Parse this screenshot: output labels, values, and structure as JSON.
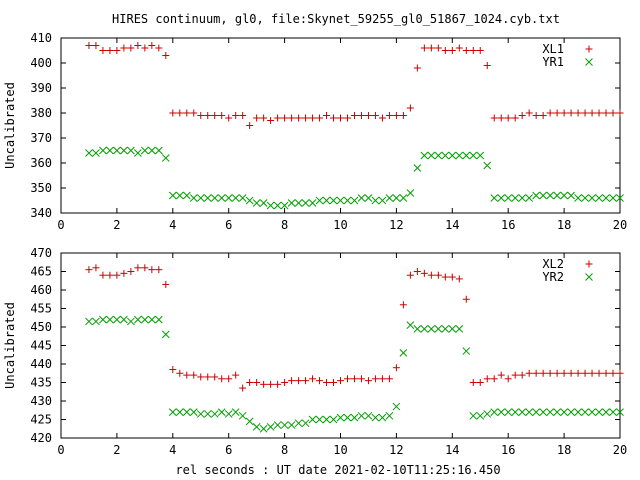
{
  "title": "HIRES continuum, gl0, file:Skynet_59255_gl0_51867_1024.cyb.txt",
  "xlabel": "rel seconds : UT date 2021-02-10T11:25:16.450",
  "colors": {
    "plus": "#cc0000",
    "cross": "#00a000",
    "frame": "#000000"
  },
  "chart_data": [
    {
      "type": "scatter",
      "ylabel": "Uncalibrated",
      "xlim": [
        0,
        20
      ],
      "ylim": [
        340,
        410
      ],
      "x_ticks": [
        0,
        2,
        4,
        6,
        8,
        10,
        12,
        14,
        16,
        18,
        20
      ],
      "y_ticks": [
        340,
        350,
        360,
        370,
        380,
        390,
        400,
        410
      ],
      "grid": false,
      "legend_position": "top-right",
      "x": [
        1.0,
        1.25,
        1.5,
        1.75,
        2.0,
        2.25,
        2.5,
        2.75,
        3.0,
        3.25,
        3.5,
        3.75,
        4.0,
        4.25,
        4.5,
        4.75,
        5.0,
        5.25,
        5.5,
        5.75,
        6.0,
        6.25,
        6.5,
        6.75,
        7.0,
        7.25,
        7.5,
        7.75,
        8.0,
        8.25,
        8.5,
        8.75,
        9.0,
        9.25,
        9.5,
        9.75,
        10.0,
        10.25,
        10.5,
        10.75,
        11.0,
        11.25,
        11.5,
        11.75,
        12.0,
        12.25,
        12.5,
        12.75,
        13.0,
        13.25,
        13.5,
        13.75,
        14.0,
        14.25,
        14.5,
        14.75,
        15.0,
        15.25,
        15.5,
        15.75,
        16.0,
        16.25,
        16.5,
        16.75,
        17.0,
        17.25,
        17.5,
        17.75,
        18.0,
        18.25,
        18.5,
        18.75,
        19.0,
        19.25,
        19.5,
        19.75,
        20.0
      ],
      "series": [
        {
          "name": "XL1",
          "marker": "plus",
          "values": [
            407,
            407,
            405,
            405,
            405,
            406,
            406,
            407,
            406,
            407,
            406,
            403,
            380,
            380,
            380,
            380,
            379,
            379,
            379,
            379,
            378,
            379,
            379,
            375,
            378,
            378,
            377,
            378,
            378,
            378,
            378,
            378,
            378,
            378,
            379,
            378,
            378,
            378,
            379,
            379,
            379,
            379,
            378,
            379,
            379,
            379,
            382,
            398,
            406,
            406,
            406,
            405,
            405,
            406,
            405,
            405,
            405,
            399,
            378,
            378,
            378,
            378,
            379,
            380,
            379,
            379,
            380,
            380,
            380,
            380,
            380,
            380,
            380,
            380,
            380,
            380,
            380
          ]
        },
        {
          "name": "YR1",
          "marker": "cross",
          "values": [
            364,
            364,
            365,
            365,
            365,
            365,
            365,
            364,
            365,
            365,
            365,
            362,
            347,
            347,
            347,
            346,
            346,
            346,
            346,
            346,
            346,
            346,
            346,
            345,
            344,
            344,
            343,
            343,
            343,
            344,
            344,
            344,
            344,
            345,
            345,
            345,
            345,
            345,
            345,
            346,
            346,
            345,
            345,
            346,
            346,
            346,
            348,
            358,
            363,
            363,
            363,
            363,
            363,
            363,
            363,
            363,
            363,
            359,
            346,
            346,
            346,
            346,
            346,
            346,
            347,
            347,
            347,
            347,
            347,
            347,
            346,
            346,
            346,
            346,
            346,
            346,
            346
          ]
        }
      ]
    },
    {
      "type": "scatter",
      "ylabel": "Uncalibrated",
      "xlim": [
        0,
        20
      ],
      "ylim": [
        420,
        470
      ],
      "x_ticks": [
        0,
        2,
        4,
        6,
        8,
        10,
        12,
        14,
        16,
        18,
        20
      ],
      "y_ticks": [
        420,
        425,
        430,
        435,
        440,
        445,
        450,
        455,
        460,
        465,
        470
      ],
      "grid": false,
      "legend_position": "top-right",
      "x": [
        1.0,
        1.25,
        1.5,
        1.75,
        2.0,
        2.25,
        2.5,
        2.75,
        3.0,
        3.25,
        3.5,
        3.75,
        4.0,
        4.25,
        4.5,
        4.75,
        5.0,
        5.25,
        5.5,
        5.75,
        6.0,
        6.25,
        6.5,
        6.75,
        7.0,
        7.25,
        7.5,
        7.75,
        8.0,
        8.25,
        8.5,
        8.75,
        9.0,
        9.25,
        9.5,
        9.75,
        10.0,
        10.25,
        10.5,
        10.75,
        11.0,
        11.25,
        11.5,
        11.75,
        12.0,
        12.25,
        12.5,
        12.75,
        13.0,
        13.25,
        13.5,
        13.75,
        14.0,
        14.25,
        14.5,
        14.75,
        15.0,
        15.25,
        15.5,
        15.75,
        16.0,
        16.25,
        16.5,
        16.75,
        17.0,
        17.25,
        17.5,
        17.75,
        18.0,
        18.25,
        18.5,
        18.75,
        19.0,
        19.25,
        19.5,
        19.75,
        20.0
      ],
      "series": [
        {
          "name": "XL2",
          "marker": "plus",
          "values": [
            465.5,
            466,
            464,
            464,
            464,
            464.5,
            465,
            466,
            466,
            465.5,
            465.5,
            461.5,
            438.5,
            437.5,
            437,
            437,
            436.5,
            436.5,
            436.5,
            436,
            436,
            437,
            433.5,
            435,
            435,
            434.5,
            434.5,
            434.5,
            435,
            435.5,
            435.5,
            435.5,
            436,
            435.5,
            435,
            435,
            435.5,
            436,
            436,
            436,
            435.5,
            436,
            436,
            436,
            439,
            456,
            464,
            465,
            464.5,
            464,
            464,
            463.5,
            463.5,
            463,
            457.5,
            435,
            435,
            436,
            436,
            437,
            436,
            437,
            437,
            437.5,
            437.5,
            437.5,
            437.5,
            437.5,
            437.5,
            437.5,
            437.5,
            437.5,
            437.5,
            437.5,
            437.5,
            437.5,
            437.5
          ]
        },
        {
          "name": "YR2",
          "marker": "cross",
          "values": [
            451.5,
            451.5,
            452,
            452,
            452,
            452,
            451.5,
            452,
            452,
            452,
            452,
            448,
            427,
            427,
            427,
            427,
            426.5,
            426.5,
            426.5,
            427,
            426.5,
            427,
            426,
            424.5,
            423,
            422.5,
            423,
            423.5,
            423.5,
            423.5,
            424,
            424,
            425,
            425,
            425,
            425,
            425.5,
            425.5,
            425.5,
            426,
            426,
            425.5,
            425.5,
            426,
            428.5,
            443,
            450.5,
            449.5,
            449.5,
            449.5,
            449.5,
            449.5,
            449.5,
            449.5,
            443.5,
            426,
            426,
            426.5,
            427,
            427,
            427,
            427,
            427,
            427,
            427,
            427,
            427,
            427,
            427,
            427,
            427,
            427,
            427,
            427,
            427,
            427,
            427
          ]
        }
      ]
    }
  ]
}
